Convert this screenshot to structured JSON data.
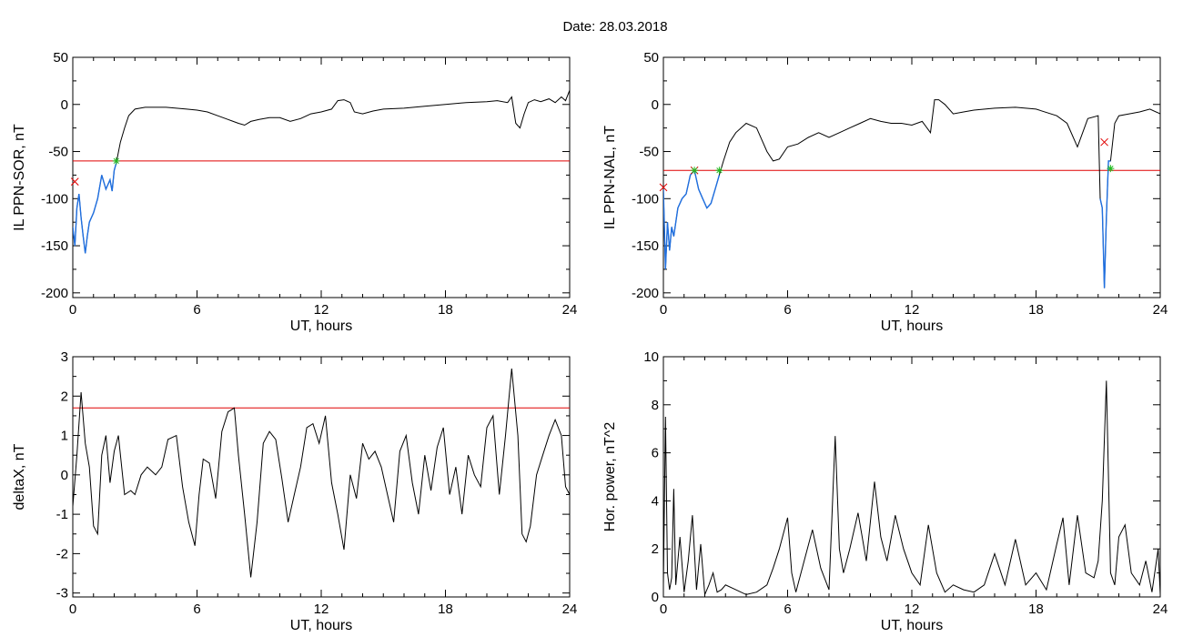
{
  "title": "Date:  28.03.2018",
  "colors": {
    "trace": "#000000",
    "threshold": "#e00000",
    "segment": "#1f6fe0",
    "onset_marker": "#e00000",
    "end_marker": "#22bb22"
  },
  "chart_data": [
    {
      "id": "il-sor",
      "type": "line",
      "xlabel": "UT, hours",
      "ylabel": "IL PPN-SOR, nT",
      "xlim": [
        0,
        24
      ],
      "ylim": [
        -205,
        50
      ],
      "xticks": [
        0,
        6,
        12,
        18,
        24
      ],
      "yticks": [
        50,
        0,
        -50,
        -100,
        -150,
        -200
      ],
      "grid": false,
      "threshold": -60,
      "series": [
        {
          "x": [
            0,
            0.1,
            0.2,
            0.3,
            0.4,
            0.5,
            0.6,
            0.7,
            0.8,
            1.0,
            1.2,
            1.4,
            1.6,
            1.8,
            1.9,
            2.0,
            2.1,
            2.3,
            2.5,
            2.7,
            3.0,
            3.5,
            4.0,
            4.5,
            5.0,
            5.5,
            6.0,
            6.5,
            7.0,
            7.5,
            8.0,
            8.3,
            8.6,
            9.0,
            9.5,
            10.0,
            10.5,
            11.0,
            11.5,
            12.0,
            12.5,
            12.8,
            13.1,
            13.4,
            13.6,
            14.0,
            14.5,
            15.0,
            16.0,
            17.0,
            18.0,
            19.0,
            20.0,
            20.5,
            21.0,
            21.2,
            21.4,
            21.6,
            21.8,
            22.0,
            22.3,
            22.6,
            23.0,
            23.3,
            23.6,
            23.8,
            24.0
          ],
          "y": [
            -130,
            -150,
            -110,
            -95,
            -120,
            -140,
            -158,
            -140,
            -125,
            -115,
            -100,
            -75,
            -90,
            -80,
            -92,
            -70,
            -62,
            -40,
            -25,
            -12,
            -5,
            -3,
            -3,
            -3,
            -4,
            -5,
            -6,
            -8,
            -12,
            -16,
            -20,
            -22,
            -18,
            -16,
            -14,
            -14,
            -18,
            -15,
            -10,
            -8,
            -5,
            4,
            5,
            2,
            -8,
            -10,
            -7,
            -5,
            -4,
            -2,
            0,
            2,
            3,
            4,
            2,
            8,
            -20,
            -25,
            -10,
            2,
            5,
            3,
            6,
            2,
            8,
            4,
            15
          ]
        }
      ],
      "segments": [
        {
          "x0": 0,
          "x1": 2.1
        }
      ],
      "onset_markers": [
        {
          "x": 0.1,
          "y": -82
        }
      ],
      "end_markers": [
        {
          "x": 2.1,
          "y": -60
        }
      ]
    },
    {
      "id": "il-nal",
      "type": "line",
      "xlabel": "UT, hours",
      "ylabel": "IL PPN-NAL, nT",
      "xlim": [
        0,
        24
      ],
      "ylim": [
        -205,
        50
      ],
      "xticks": [
        0,
        6,
        12,
        18,
        24
      ],
      "yticks": [
        50,
        0,
        -50,
        -100,
        -150,
        -200
      ],
      "grid": false,
      "threshold": -70,
      "series": [
        {
          "x": [
            0,
            0.1,
            0.2,
            0.3,
            0.4,
            0.5,
            0.7,
            0.9,
            1.1,
            1.3,
            1.5,
            1.7,
            1.9,
            2.1,
            2.3,
            2.5,
            2.7,
            2.9,
            3.2,
            3.5,
            4.0,
            4.5,
            5.0,
            5.3,
            5.6,
            6.0,
            6.5,
            7.0,
            7.5,
            8.0,
            8.5,
            9.0,
            9.5,
            10.0,
            10.5,
            11.0,
            11.5,
            12.0,
            12.5,
            12.9,
            13.1,
            13.3,
            13.6,
            14.0,
            14.5,
            15.0,
            16.0,
            17.0,
            18.0,
            19.0,
            19.5,
            20.0,
            20.5,
            21.0,
            21.1,
            21.2,
            21.3,
            21.4,
            21.5,
            21.6,
            21.8,
            22.0,
            22.5,
            23.0,
            23.5,
            24.0
          ],
          "y": [
            -90,
            -175,
            -125,
            -155,
            -130,
            -140,
            -110,
            -100,
            -95,
            -75,
            -70,
            -90,
            -100,
            -110,
            -105,
            -90,
            -75,
            -60,
            -40,
            -30,
            -20,
            -25,
            -50,
            -60,
            -58,
            -45,
            -42,
            -35,
            -30,
            -35,
            -30,
            -25,
            -20,
            -15,
            -18,
            -20,
            -20,
            -22,
            -18,
            -30,
            5,
            5,
            0,
            -10,
            -8,
            -6,
            -4,
            -3,
            -5,
            -12,
            -20,
            -45,
            -15,
            -12,
            -100,
            -110,
            -195,
            -120,
            -60,
            -60,
            -20,
            -12,
            -10,
            -8,
            -5,
            -10
          ]
        }
      ],
      "segments": [
        {
          "x0": 0,
          "x1": 2.7
        },
        {
          "x0": 21.1,
          "x1": 21.6
        }
      ],
      "onset_markers": [
        {
          "x": 0,
          "y": -88
        },
        {
          "x": 1.5,
          "y": -70
        },
        {
          "x": 21.3,
          "y": -40
        }
      ],
      "end_markers": [
        {
          "x": 1.5,
          "y": -70
        },
        {
          "x": 2.7,
          "y": -70
        },
        {
          "x": 21.6,
          "y": -68
        }
      ]
    },
    {
      "id": "deltax",
      "type": "line",
      "xlabel": "UT, hours",
      "ylabel": "deltaX, nT",
      "xlim": [
        0,
        24
      ],
      "ylim": [
        -3.1,
        3
      ],
      "xticks": [
        0,
        6,
        12,
        18,
        24
      ],
      "yticks": [
        3,
        2,
        1,
        0,
        -1,
        -2,
        -3
      ],
      "grid": false,
      "threshold": 1.7,
      "series": [
        {
          "x": [
            0,
            0.2,
            0.4,
            0.6,
            0.8,
            1.0,
            1.2,
            1.4,
            1.6,
            1.8,
            2.0,
            2.2,
            2.5,
            2.8,
            3.0,
            3.3,
            3.6,
            4.0,
            4.3,
            4.6,
            5.0,
            5.3,
            5.6,
            5.9,
            6.1,
            6.3,
            6.6,
            6.9,
            7.2,
            7.5,
            7.8,
            8.0,
            8.3,
            8.6,
            8.9,
            9.2,
            9.5,
            9.8,
            10.1,
            10.4,
            10.7,
            11.0,
            11.3,
            11.6,
            11.9,
            12.2,
            12.5,
            12.8,
            13.1,
            13.4,
            13.7,
            14.0,
            14.3,
            14.6,
            14.9,
            15.2,
            15.5,
            15.8,
            16.1,
            16.4,
            16.7,
            17.0,
            17.3,
            17.6,
            17.9,
            18.2,
            18.5,
            18.8,
            19.1,
            19.4,
            19.7,
            20.0,
            20.3,
            20.6,
            20.9,
            21.2,
            21.5,
            21.7,
            21.9,
            22.1,
            22.4,
            22.7,
            23.0,
            23.3,
            23.6,
            23.8,
            24.0
          ],
          "y": [
            -0.8,
            0.5,
            2.1,
            0.8,
            0.2,
            -1.3,
            -1.5,
            0.5,
            1.0,
            -0.2,
            0.6,
            1.0,
            -0.5,
            -0.4,
            -0.5,
            0.0,
            0.2,
            0.0,
            0.2,
            0.9,
            1.0,
            -0.3,
            -1.2,
            -1.8,
            -0.5,
            0.4,
            0.3,
            -0.6,
            1.1,
            1.6,
            1.7,
            0.5,
            -1.0,
            -2.6,
            -1.2,
            0.8,
            1.1,
            0.9,
            -0.1,
            -1.2,
            -0.5,
            0.2,
            1.2,
            1.3,
            0.8,
            1.5,
            -0.2,
            -1.0,
            -1.9,
            0.0,
            -0.6,
            0.8,
            0.4,
            0.6,
            0.2,
            -0.5,
            -1.2,
            0.6,
            1.0,
            -0.2,
            -1.0,
            0.5,
            -0.4,
            0.7,
            1.2,
            -0.5,
            0.2,
            -1.0,
            0.5,
            0.0,
            -0.3,
            1.2,
            1.5,
            -0.5,
            1.0,
            2.7,
            1.0,
            -1.5,
            -1.7,
            -1.3,
            0.0,
            0.5,
            1.0,
            1.4,
            1.0,
            -0.3,
            -0.5
          ]
        }
      ],
      "segments": [],
      "onset_markers": [],
      "end_markers": []
    },
    {
      "id": "hor-power",
      "type": "line",
      "xlabel": "UT, hours",
      "ylabel": "Hor. power, nT^2",
      "xlim": [
        0,
        24
      ],
      "ylim": [
        0,
        10
      ],
      "xticks": [
        0,
        6,
        12,
        18,
        24
      ],
      "yticks": [
        10,
        8,
        6,
        4,
        2,
        0
      ],
      "grid": false,
      "threshold": null,
      "series": [
        {
          "x": [
            0,
            0.1,
            0.2,
            0.3,
            0.4,
            0.5,
            0.6,
            0.8,
            1.0,
            1.2,
            1.4,
            1.6,
            1.8,
            2.0,
            2.2,
            2.4,
            2.6,
            2.8,
            3.0,
            3.5,
            4.0,
            4.5,
            5.0,
            5.3,
            5.6,
            6.0,
            6.2,
            6.4,
            6.8,
            7.2,
            7.6,
            8.0,
            8.3,
            8.5,
            8.7,
            9.0,
            9.4,
            9.8,
            10.2,
            10.5,
            10.8,
            11.2,
            11.6,
            12.0,
            12.4,
            12.8,
            13.2,
            13.6,
            14.0,
            14.5,
            15.0,
            15.5,
            16.0,
            16.5,
            17.0,
            17.5,
            18.0,
            18.5,
            19.0,
            19.3,
            19.6,
            20.0,
            20.4,
            20.8,
            21.0,
            21.2,
            21.4,
            21.6,
            21.8,
            22.0,
            22.3,
            22.6,
            23.0,
            23.3,
            23.6,
            23.9,
            24.0
          ],
          "y": [
            0.5,
            7.5,
            1.0,
            0.3,
            0.8,
            4.5,
            0.5,
            2.5,
            0.2,
            1.5,
            3.4,
            0.3,
            2.2,
            0.1,
            0.5,
            1.0,
            0.2,
            0.3,
            0.5,
            0.3,
            0.1,
            0.2,
            0.5,
            1.2,
            2.0,
            3.3,
            1.0,
            0.2,
            1.5,
            2.8,
            1.2,
            0.3,
            6.7,
            2.0,
            1.0,
            2.0,
            3.5,
            1.5,
            4.8,
            2.5,
            1.5,
            3.4,
            2.0,
            1.0,
            0.5,
            3.0,
            1.0,
            0.2,
            0.5,
            0.3,
            0.2,
            0.5,
            1.8,
            0.5,
            2.4,
            0.5,
            1.0,
            0.3,
            2.2,
            3.3,
            0.5,
            3.4,
            1.0,
            0.8,
            1.5,
            4.0,
            9.0,
            1.0,
            0.5,
            2.5,
            3.0,
            1.0,
            0.5,
            1.5,
            0.2,
            2.0,
            0.1
          ]
        }
      ],
      "segments": [],
      "onset_markers": [],
      "end_markers": []
    }
  ]
}
